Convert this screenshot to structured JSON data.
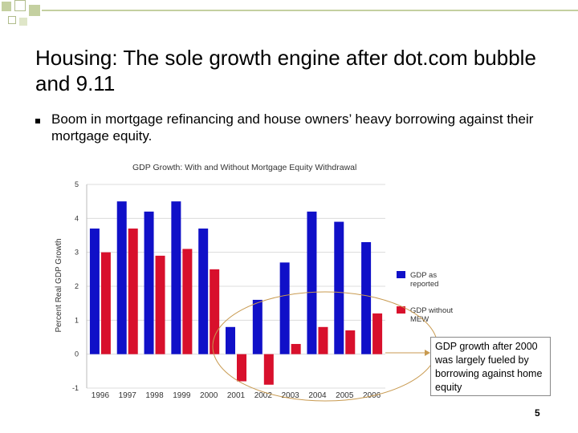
{
  "slide": {
    "title": "Housing: The sole growth engine after dot.com bubble and 9.11",
    "bullet": "Boom in mortgage refinancing and house owners’ heavy borrowing against their mortgage equity.",
    "callout": "GDP growth after 2000 was largely fueled by borrowing against home equity",
    "page_number": "5"
  },
  "colors": {
    "gdp_reported": "#1010c8",
    "gdp_without_mew": "#d8102c",
    "decor_square": "#c4d0a0",
    "annotation": "#c89a50"
  },
  "chart_data": {
    "type": "bar",
    "title": "GDP Growth: With and Without Mortgage Equity Withdrawal",
    "xlabel": "",
    "ylabel": "Percent Real GDP Growth",
    "categories": [
      "1996",
      "1997",
      "1998",
      "1999",
      "2000",
      "2001",
      "2002",
      "2003",
      "2004",
      "2005",
      "2006"
    ],
    "ylim": [
      -1,
      5
    ],
    "yticks": [
      "5",
      "4",
      "3",
      "2",
      "1",
      "0",
      "-1"
    ],
    "legend_position": "right",
    "series": [
      {
        "name": "GDP as reported",
        "values": [
          3.7,
          4.5,
          4.2,
          4.5,
          3.7,
          0.8,
          1.6,
          2.7,
          4.2,
          3.9,
          3.3
        ]
      },
      {
        "name": "GDP without MEW",
        "values": [
          3.0,
          3.7,
          2.9,
          3.1,
          2.5,
          -0.8,
          -0.9,
          0.3,
          0.8,
          0.7,
          1.2
        ]
      }
    ]
  }
}
